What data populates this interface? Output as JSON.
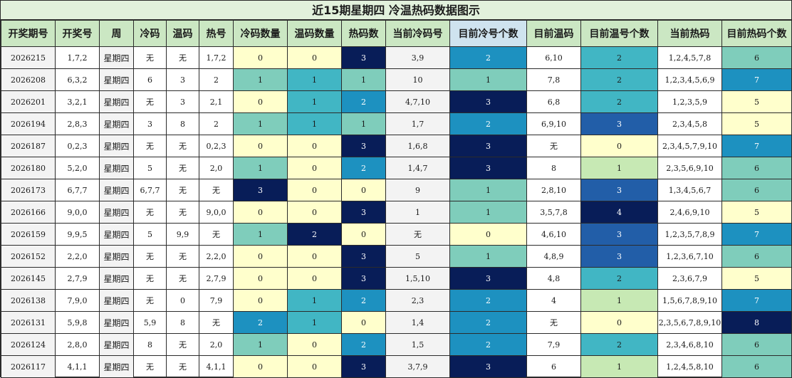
{
  "title": "近15期星期四 冷温热码数据图示",
  "headers": [
    "开奖期号",
    "开奖号",
    "周",
    "冷码",
    "温码",
    "热号",
    "冷码数量",
    "温码数量",
    "热码数",
    "当前冷码号",
    "目前冷号个数",
    "目前温码",
    "目前温号个数",
    "当前热码",
    "目前热码个数"
  ],
  "palette": {
    "0": "#ffffcc",
    "1": "#c7e9b4",
    "2": "#7fcdbb",
    "3": "#41b6c4",
    "4": "#1d91c0",
    "5": "#225ea8",
    "6": "#0c2c84",
    "7": "#081d58"
  },
  "rows": [
    {
      "issue": "2026215",
      "number": "1,7,2",
      "week": "星期四",
      "cold": "无",
      "warm": "无",
      "hot": "1,7,2",
      "cold_count": "0",
      "warm_count": "0",
      "hot_count": "3",
      "cur_cold": "3,9",
      "cur_cold_count": "2",
      "cur_warm": "6,10",
      "cur_warm_count": "2",
      "cur_hot": "1,2,4,5,7,8",
      "cur_hot_count": "6"
    },
    {
      "issue": "2026208",
      "number": "6,3,2",
      "week": "星期四",
      "cold": "6",
      "warm": "3",
      "hot": "2",
      "cold_count": "1",
      "warm_count": "1",
      "hot_count": "1",
      "cur_cold": "10",
      "cur_cold_count": "1",
      "cur_warm": "7,8",
      "cur_warm_count": "2",
      "cur_hot": "1,2,3,4,5,6,9",
      "cur_hot_count": "7"
    },
    {
      "issue": "2026201",
      "number": "3,2,1",
      "week": "星期四",
      "cold": "无",
      "warm": "3",
      "hot": "2,1",
      "cold_count": "0",
      "warm_count": "1",
      "hot_count": "2",
      "cur_cold": "4,7,10",
      "cur_cold_count": "3",
      "cur_warm": "6,8",
      "cur_warm_count": "2",
      "cur_hot": "1,2,3,5,9",
      "cur_hot_count": "5"
    },
    {
      "issue": "2026194",
      "number": "2,8,3",
      "week": "星期四",
      "cold": "3",
      "warm": "8",
      "hot": "2",
      "cold_count": "1",
      "warm_count": "1",
      "hot_count": "1",
      "cur_cold": "1,7",
      "cur_cold_count": "2",
      "cur_warm": "6,9,10",
      "cur_warm_count": "3",
      "cur_hot": "2,3,4,5,8",
      "cur_hot_count": "5"
    },
    {
      "issue": "2026187",
      "number": "0,2,3",
      "week": "星期四",
      "cold": "无",
      "warm": "无",
      "hot": "0,2,3",
      "cold_count": "0",
      "warm_count": "0",
      "hot_count": "3",
      "cur_cold": "1,6,8",
      "cur_cold_count": "3",
      "cur_warm": "无",
      "cur_warm_count": "0",
      "cur_hot": "2,3,4,5,7,9,10",
      "cur_hot_count": "7"
    },
    {
      "issue": "2026180",
      "number": "5,2,0",
      "week": "星期四",
      "cold": "5",
      "warm": "无",
      "hot": "2,0",
      "cold_count": "1",
      "warm_count": "0",
      "hot_count": "2",
      "cur_cold": "1,4,7",
      "cur_cold_count": "3",
      "cur_warm": "8",
      "cur_warm_count": "1",
      "cur_hot": "2,3,5,6,9,10",
      "cur_hot_count": "6"
    },
    {
      "issue": "2026173",
      "number": "6,7,7",
      "week": "星期四",
      "cold": "6,7,7",
      "warm": "无",
      "hot": "无",
      "cold_count": "3",
      "warm_count": "0",
      "hot_count": "0",
      "cur_cold": "9",
      "cur_cold_count": "1",
      "cur_warm": "2,8,10",
      "cur_warm_count": "3",
      "cur_hot": "1,3,4,5,6,7",
      "cur_hot_count": "6"
    },
    {
      "issue": "2026166",
      "number": "9,0,0",
      "week": "星期四",
      "cold": "无",
      "warm": "无",
      "hot": "9,0,0",
      "cold_count": "0",
      "warm_count": "0",
      "hot_count": "3",
      "cur_cold": "1",
      "cur_cold_count": "1",
      "cur_warm": "3,5,7,8",
      "cur_warm_count": "4",
      "cur_hot": "2,4,6,9,10",
      "cur_hot_count": "5"
    },
    {
      "issue": "2026159",
      "number": "9,9,5",
      "week": "星期四",
      "cold": "5",
      "warm": "9,9",
      "hot": "无",
      "cold_count": "1",
      "warm_count": "2",
      "hot_count": "0",
      "cur_cold": "无",
      "cur_cold_count": "0",
      "cur_warm": "4,6,10",
      "cur_warm_count": "3",
      "cur_hot": "1,2,3,5,7,8,9",
      "cur_hot_count": "7"
    },
    {
      "issue": "2026152",
      "number": "2,2,0",
      "week": "星期四",
      "cold": "无",
      "warm": "无",
      "hot": "2,2,0",
      "cold_count": "0",
      "warm_count": "0",
      "hot_count": "3",
      "cur_cold": "5",
      "cur_cold_count": "1",
      "cur_warm": "4,8,9",
      "cur_warm_count": "3",
      "cur_hot": "1,2,3,6,7,10",
      "cur_hot_count": "6"
    },
    {
      "issue": "2026145",
      "number": "2,7,9",
      "week": "星期四",
      "cold": "无",
      "warm": "无",
      "hot": "2,7,9",
      "cold_count": "0",
      "warm_count": "0",
      "hot_count": "3",
      "cur_cold": "1,5,10",
      "cur_cold_count": "3",
      "cur_warm": "4,8",
      "cur_warm_count": "2",
      "cur_hot": "2,3,6,7,9",
      "cur_hot_count": "5"
    },
    {
      "issue": "2026138",
      "number": "7,9,0",
      "week": "星期四",
      "cold": "无",
      "warm": "0",
      "hot": "7,9",
      "cold_count": "0",
      "warm_count": "1",
      "hot_count": "2",
      "cur_cold": "2,3",
      "cur_cold_count": "2",
      "cur_warm": "4",
      "cur_warm_count": "1",
      "cur_hot": "1,5,6,7,8,9,10",
      "cur_hot_count": "7"
    },
    {
      "issue": "2026131",
      "number": "5,9,8",
      "week": "星期四",
      "cold": "5,9",
      "warm": "8",
      "hot": "无",
      "cold_count": "2",
      "warm_count": "1",
      "hot_count": "0",
      "cur_cold": "1,4",
      "cur_cold_count": "2",
      "cur_warm": "无",
      "cur_warm_count": "0",
      "cur_hot": "2,3,5,6,7,8,9,10",
      "cur_hot_count": "8"
    },
    {
      "issue": "2026124",
      "number": "2,8,0",
      "week": "星期四",
      "cold": "8",
      "warm": "无",
      "hot": "2,0",
      "cold_count": "1",
      "warm_count": "0",
      "hot_count": "2",
      "cur_cold": "1,5",
      "cur_cold_count": "2",
      "cur_warm": "7,9",
      "cur_warm_count": "2",
      "cur_hot": "2,3,4,6,8,10",
      "cur_hot_count": "6"
    },
    {
      "issue": "2026117",
      "number": "4,1,1",
      "week": "星期四",
      "cold": "无",
      "warm": "无",
      "hot": "4,1,1",
      "cold_count": "0",
      "warm_count": "0",
      "hot_count": "3",
      "cur_cold": "3,7,9",
      "cur_cold_count": "3",
      "cur_warm": "6",
      "cur_warm_count": "1",
      "cur_hot": "1,2,4,5,8,10",
      "cur_hot_count": "6"
    }
  ]
}
